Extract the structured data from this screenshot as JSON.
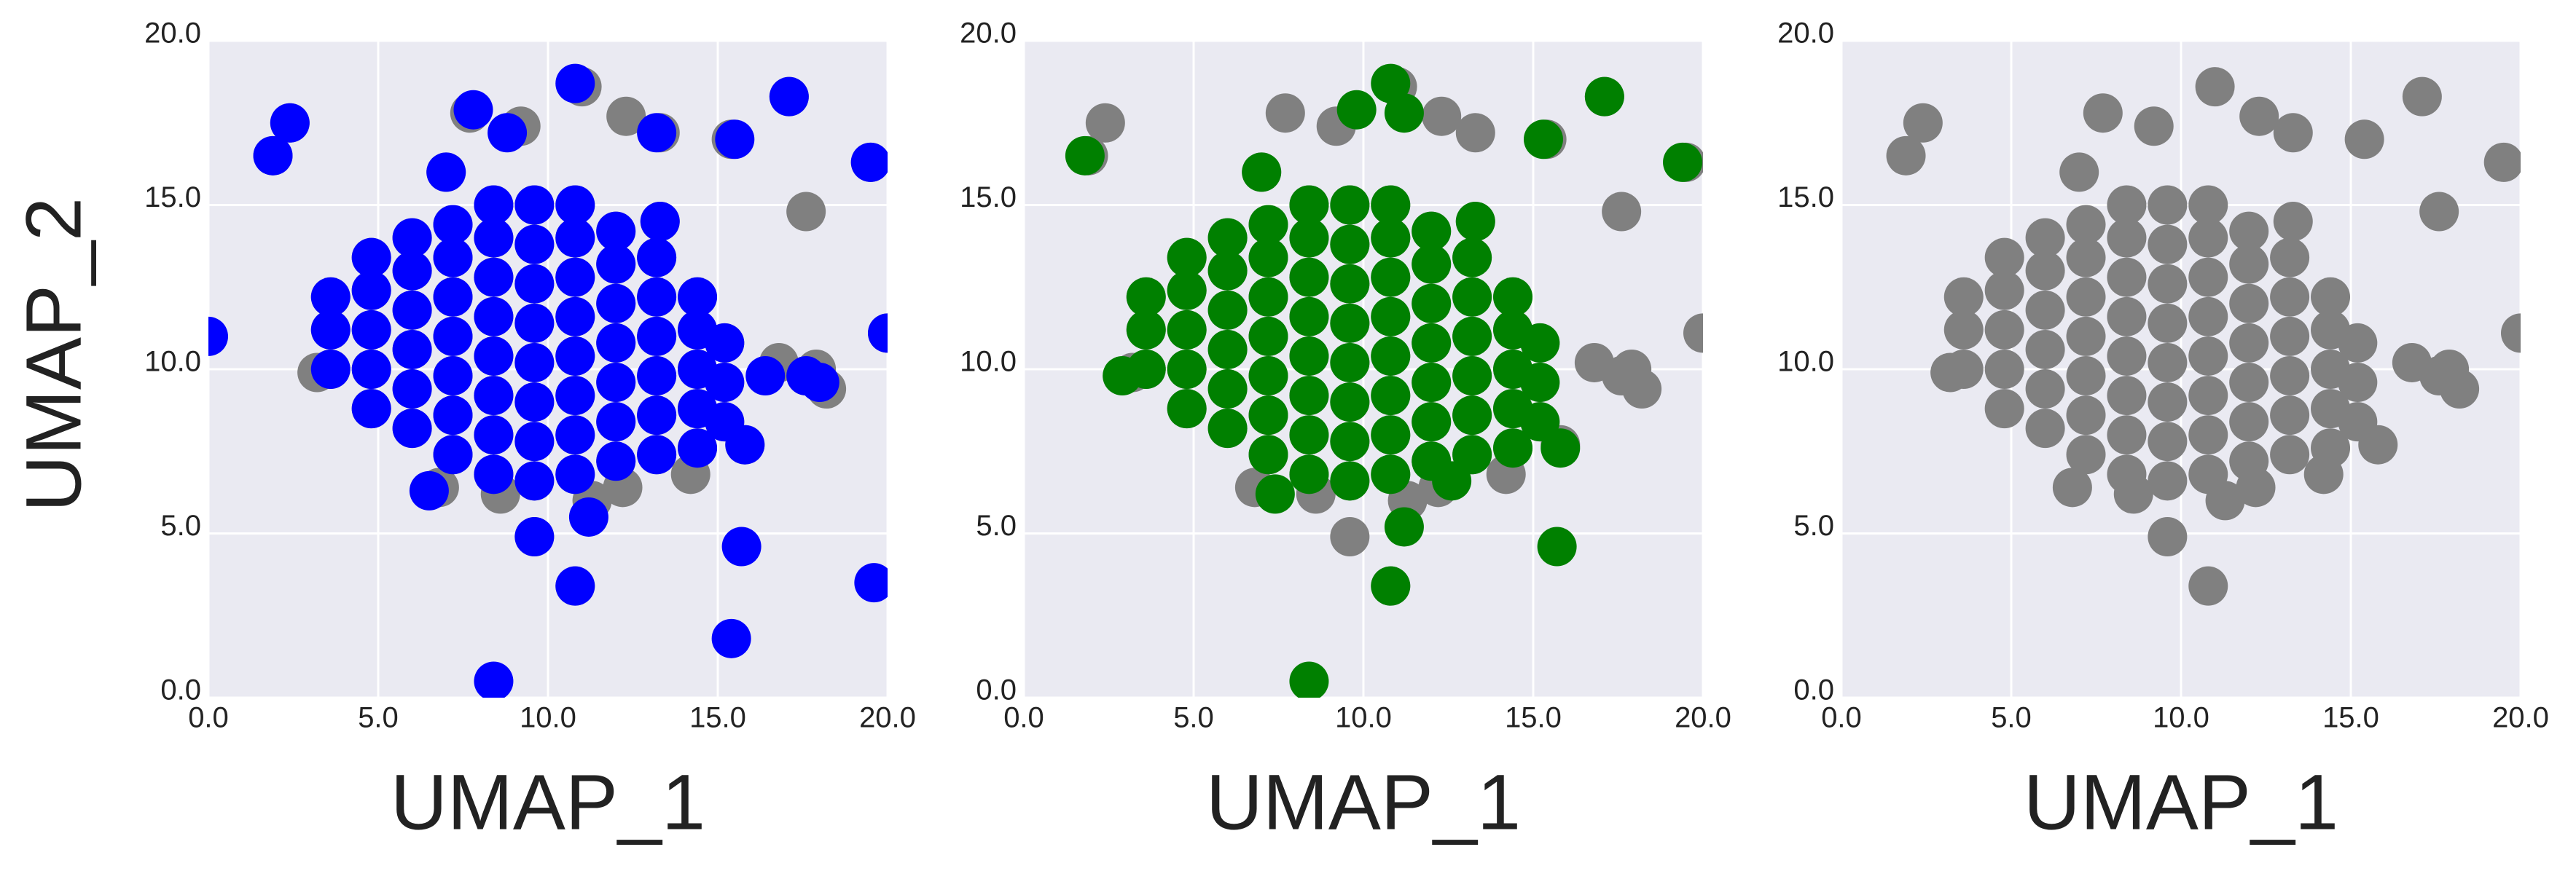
{
  "chart_data": [
    {
      "type": "scatter",
      "x_label": "UMAP_1",
      "y_label": "UMAP_2",
      "xlim": [
        0,
        20
      ],
      "ylim": [
        0,
        20
      ],
      "xticks": [
        {
          "value": 0,
          "label": "0.0"
        },
        {
          "value": 5,
          "label": "5.0"
        },
        {
          "value": 10,
          "label": "10.0"
        },
        {
          "value": 15,
          "label": "15.0"
        },
        {
          "value": 20,
          "label": "20.0"
        }
      ],
      "yticks": [
        {
          "value": 0,
          "label": "0.0"
        },
        {
          "value": 5,
          "label": "5.0"
        },
        {
          "value": 10,
          "label": "10.0"
        },
        {
          "value": 15,
          "label": "15.0"
        },
        {
          "value": 20,
          "label": "20.0"
        }
      ],
      "grid": true,
      "background": "#eaeaf2",
      "series": [
        {
          "color": "#808080",
          "x": [
            3.6,
            3.6,
            3.6,
            4.8,
            4.8,
            4.8,
            4.8,
            4.8,
            6.0,
            6.0,
            6.0,
            6.0,
            6.0,
            6.0,
            7.2,
            7.2,
            7.2,
            7.2,
            7.2,
            7.2,
            7.2,
            8.4,
            8.4,
            8.4,
            8.4,
            8.4,
            8.4,
            8.4,
            8.4,
            9.6,
            9.6,
            9.6,
            9.6,
            9.6,
            9.6,
            9.6,
            9.6,
            10.8,
            10.8,
            10.8,
            10.8,
            10.8,
            10.8,
            10.8,
            10.8,
            12.0,
            12.0,
            12.0,
            12.0,
            12.0,
            12.0,
            12.0,
            13.2,
            13.2,
            13.2,
            13.2,
            13.2,
            13.2,
            14.4,
            14.4,
            14.4,
            14.4,
            14.4,
            15.2,
            15.2,
            15.2,
            2.4,
            1.9,
            3.2,
            7.0,
            7.7,
            9.2,
            11.0,
            12.3,
            13.3,
            15.4,
            17.1,
            17.6,
            19.5,
            20.0,
            16.8,
            17.6,
            18.2,
            17.9,
            15.8,
            9.6,
            10.8,
            13.3,
            11.3,
            8.6,
            6.8,
            14.2,
            12.2
          ],
          "y": [
            10.0,
            11.2,
            12.2,
            8.8,
            10.0,
            11.2,
            12.4,
            13.4,
            8.2,
            9.4,
            10.6,
            11.8,
            13.0,
            14.0,
            7.4,
            8.6,
            9.8,
            11.0,
            12.2,
            13.4,
            14.4,
            6.8,
            8.0,
            9.2,
            10.4,
            11.6,
            12.8,
            14.0,
            15.0,
            6.6,
            7.8,
            9.0,
            10.2,
            11.4,
            12.6,
            13.8,
            15.0,
            6.8,
            8.0,
            9.2,
            10.4,
            11.6,
            12.8,
            14.0,
            15.0,
            7.2,
            8.4,
            9.6,
            10.8,
            12.0,
            13.2,
            14.2,
            7.4,
            8.6,
            9.8,
            11.0,
            12.2,
            13.4,
            7.6,
            8.8,
            10.0,
            11.2,
            12.2,
            8.4,
            9.6,
            10.8,
            17.5,
            16.5,
            9.9,
            16.0,
            17.8,
            17.4,
            18.6,
            17.7,
            17.2,
            17.0,
            18.3,
            14.8,
            16.3,
            11.1,
            10.2,
            9.8,
            9.4,
            10.0,
            7.7,
            4.9,
            3.4,
            14.5,
            6.0,
            6.2,
            6.4,
            6.8,
            6.4
          ]
        },
        {
          "color": "#0000ff",
          "x": [
            3.6,
            3.6,
            3.6,
            4.8,
            4.8,
            4.8,
            4.8,
            4.8,
            6.0,
            6.0,
            6.0,
            6.0,
            6.0,
            6.0,
            7.2,
            7.2,
            7.2,
            7.2,
            7.2,
            7.2,
            7.2,
            8.4,
            8.4,
            8.4,
            8.4,
            8.4,
            8.4,
            8.4,
            8.4,
            9.6,
            9.6,
            9.6,
            9.6,
            9.6,
            9.6,
            9.6,
            9.6,
            10.8,
            10.8,
            10.8,
            10.8,
            10.8,
            10.8,
            10.8,
            10.8,
            12.0,
            12.0,
            12.0,
            12.0,
            12.0,
            12.0,
            12.0,
            13.2,
            13.2,
            13.2,
            13.2,
            13.2,
            13.2,
            14.4,
            14.4,
            14.4,
            14.4,
            14.4,
            15.2,
            15.2,
            15.2,
            0.0,
            1.9,
            2.4,
            7.8,
            8.8,
            10.8,
            13.2,
            15.5,
            17.1,
            19.5,
            20.0,
            7.0,
            18.0,
            17.6,
            15.8,
            9.6,
            10.8,
            15.7,
            15.4,
            19.6,
            8.4,
            11.2,
            6.5,
            13.3,
            16.4
          ],
          "y": [
            10.0,
            11.2,
            12.2,
            8.8,
            10.0,
            11.2,
            12.4,
            13.4,
            8.2,
            9.4,
            10.6,
            11.8,
            13.0,
            14.0,
            7.4,
            8.6,
            9.8,
            11.0,
            12.2,
            13.4,
            14.4,
            6.8,
            8.0,
            9.2,
            10.4,
            11.6,
            12.8,
            14.0,
            15.0,
            6.6,
            7.8,
            9.0,
            10.2,
            11.4,
            12.6,
            13.8,
            15.0,
            6.8,
            8.0,
            9.2,
            10.4,
            11.6,
            12.8,
            14.0,
            15.0,
            7.2,
            8.4,
            9.6,
            10.8,
            12.0,
            13.2,
            14.2,
            7.4,
            8.6,
            9.8,
            11.0,
            12.2,
            13.4,
            7.6,
            8.8,
            10.0,
            11.2,
            12.2,
            8.4,
            9.6,
            10.8,
            11.0,
            16.5,
            17.5,
            17.9,
            17.2,
            18.7,
            17.2,
            17.0,
            18.3,
            16.3,
            11.1,
            16.0,
            9.6,
            9.8,
            7.7,
            4.9,
            3.4,
            4.6,
            1.8,
            3.5,
            0.5,
            5.5,
            6.3,
            14.5,
            9.8
          ]
        }
      ]
    },
    {
      "type": "scatter",
      "x_label": "UMAP_1",
      "xlim": [
        0,
        20
      ],
      "ylim": [
        0,
        20
      ],
      "xticks": [
        {
          "value": 0,
          "label": "0.0"
        },
        {
          "value": 5,
          "label": "5.0"
        },
        {
          "value": 10,
          "label": "10.0"
        },
        {
          "value": 15,
          "label": "15.0"
        },
        {
          "value": 20,
          "label": "20.0"
        }
      ],
      "yticks": [
        {
          "value": 0,
          "label": "0.0"
        },
        {
          "value": 5,
          "label": "5.0"
        },
        {
          "value": 10,
          "label": "10.0"
        },
        {
          "value": 15,
          "label": "15.0"
        },
        {
          "value": 20,
          "label": "20.0"
        }
      ],
      "grid": true,
      "background": "#eaeaf2",
      "series": [
        {
          "color": "#808080",
          "x": [
            3.6,
            3.6,
            3.6,
            4.8,
            4.8,
            4.8,
            4.8,
            4.8,
            6.0,
            6.0,
            6.0,
            6.0,
            6.0,
            6.0,
            7.2,
            7.2,
            7.2,
            7.2,
            7.2,
            7.2,
            7.2,
            8.4,
            8.4,
            8.4,
            8.4,
            8.4,
            8.4,
            8.4,
            8.4,
            9.6,
            9.6,
            9.6,
            9.6,
            9.6,
            9.6,
            9.6,
            9.6,
            10.8,
            10.8,
            10.8,
            10.8,
            10.8,
            10.8,
            10.8,
            10.8,
            12.0,
            12.0,
            12.0,
            12.0,
            12.0,
            12.0,
            12.0,
            13.2,
            13.2,
            13.2,
            13.2,
            13.2,
            13.2,
            14.4,
            14.4,
            14.4,
            14.4,
            14.4,
            15.2,
            15.2,
            15.2,
            2.4,
            1.9,
            3.2,
            7.0,
            7.7,
            9.2,
            11.0,
            12.3,
            13.3,
            15.4,
            17.1,
            17.6,
            19.5,
            20.0,
            16.8,
            17.6,
            18.2,
            17.9,
            15.8,
            9.6,
            10.8,
            13.3,
            11.3,
            8.6,
            6.8,
            14.2,
            12.2
          ],
          "y": [
            10.0,
            11.2,
            12.2,
            8.8,
            10.0,
            11.2,
            12.4,
            13.4,
            8.2,
            9.4,
            10.6,
            11.8,
            13.0,
            14.0,
            7.4,
            8.6,
            9.8,
            11.0,
            12.2,
            13.4,
            14.4,
            6.8,
            8.0,
            9.2,
            10.4,
            11.6,
            12.8,
            14.0,
            15.0,
            6.6,
            7.8,
            9.0,
            10.2,
            11.4,
            12.6,
            13.8,
            15.0,
            6.8,
            8.0,
            9.2,
            10.4,
            11.6,
            12.8,
            14.0,
            15.0,
            7.2,
            8.4,
            9.6,
            10.8,
            12.0,
            13.2,
            14.2,
            7.4,
            8.6,
            9.8,
            11.0,
            12.2,
            13.4,
            7.6,
            8.8,
            10.0,
            11.2,
            12.2,
            8.4,
            9.6,
            10.8,
            17.5,
            16.5,
            9.9,
            16.0,
            17.8,
            17.4,
            18.6,
            17.7,
            17.2,
            17.0,
            18.3,
            14.8,
            16.3,
            11.1,
            10.2,
            9.8,
            9.4,
            10.0,
            7.7,
            4.9,
            3.4,
            14.5,
            6.0,
            6.2,
            6.4,
            6.8,
            6.4
          ]
        },
        {
          "color": "#008000",
          "x": [
            3.6,
            3.6,
            3.6,
            4.8,
            4.8,
            4.8,
            4.8,
            4.8,
            6.0,
            6.0,
            6.0,
            6.0,
            6.0,
            6.0,
            7.2,
            7.2,
            7.2,
            7.2,
            7.2,
            7.2,
            7.2,
            8.4,
            8.4,
            8.4,
            8.4,
            8.4,
            8.4,
            8.4,
            8.4,
            9.6,
            9.6,
            9.6,
            9.6,
            9.6,
            9.6,
            9.6,
            9.6,
            10.8,
            10.8,
            10.8,
            10.8,
            10.8,
            10.8,
            10.8,
            10.8,
            12.0,
            12.0,
            12.0,
            12.0,
            12.0,
            12.0,
            12.0,
            13.2,
            13.2,
            13.2,
            13.2,
            13.2,
            13.2,
            14.4,
            14.4,
            14.4,
            14.4,
            14.4,
            15.2,
            15.2,
            15.2,
            1.8,
            2.9,
            7.0,
            9.8,
            10.8,
            11.2,
            13.3,
            15.3,
            15.8,
            17.1,
            19.4,
            10.8,
            15.7,
            8.4,
            11.2,
            7.4,
            12.6
          ],
          "y": [
            10.0,
            11.2,
            12.2,
            8.8,
            10.0,
            11.2,
            12.4,
            13.4,
            8.2,
            9.4,
            10.6,
            11.8,
            13.0,
            14.0,
            7.4,
            8.6,
            9.8,
            11.0,
            12.2,
            13.4,
            14.4,
            6.8,
            8.0,
            9.2,
            10.4,
            11.6,
            12.8,
            14.0,
            15.0,
            6.6,
            7.8,
            9.0,
            10.2,
            11.4,
            12.6,
            13.8,
            15.0,
            6.8,
            8.0,
            9.2,
            10.4,
            11.6,
            12.8,
            14.0,
            15.0,
            7.2,
            8.4,
            9.6,
            10.8,
            12.0,
            13.2,
            14.2,
            7.4,
            8.6,
            9.8,
            11.0,
            12.2,
            13.4,
            7.6,
            8.8,
            10.0,
            11.2,
            12.2,
            8.4,
            9.6,
            10.8,
            16.5,
            9.8,
            16.0,
            17.9,
            18.7,
            17.8,
            14.5,
            17.0,
            7.6,
            18.3,
            16.3,
            3.4,
            4.6,
            0.5,
            5.2,
            6.2,
            6.6
          ]
        }
      ]
    },
    {
      "type": "scatter",
      "x_label": "UMAP_1",
      "xlim": [
        0,
        20
      ],
      "ylim": [
        0,
        20
      ],
      "xticks": [
        {
          "value": 0,
          "label": "0.0"
        },
        {
          "value": 5,
          "label": "5.0"
        },
        {
          "value": 10,
          "label": "10.0"
        },
        {
          "value": 15,
          "label": "15.0"
        },
        {
          "value": 20,
          "label": "20.0"
        }
      ],
      "yticks": [
        {
          "value": 0,
          "label": "0.0"
        },
        {
          "value": 5,
          "label": "5.0"
        },
        {
          "value": 10,
          "label": "10.0"
        },
        {
          "value": 15,
          "label": "15.0"
        },
        {
          "value": 20,
          "label": "20.0"
        }
      ],
      "grid": true,
      "background": "#eaeaf2",
      "series": [
        {
          "color": "#808080",
          "x": [
            3.6,
            3.6,
            3.6,
            4.8,
            4.8,
            4.8,
            4.8,
            4.8,
            6.0,
            6.0,
            6.0,
            6.0,
            6.0,
            6.0,
            7.2,
            7.2,
            7.2,
            7.2,
            7.2,
            7.2,
            7.2,
            8.4,
            8.4,
            8.4,
            8.4,
            8.4,
            8.4,
            8.4,
            8.4,
            9.6,
            9.6,
            9.6,
            9.6,
            9.6,
            9.6,
            9.6,
            9.6,
            10.8,
            10.8,
            10.8,
            10.8,
            10.8,
            10.8,
            10.8,
            10.8,
            12.0,
            12.0,
            12.0,
            12.0,
            12.0,
            12.0,
            12.0,
            13.2,
            13.2,
            13.2,
            13.2,
            13.2,
            13.2,
            14.4,
            14.4,
            14.4,
            14.4,
            14.4,
            15.2,
            15.2,
            15.2,
            2.4,
            1.9,
            3.2,
            7.0,
            7.7,
            9.2,
            11.0,
            12.3,
            13.3,
            15.4,
            17.1,
            17.6,
            19.5,
            20.0,
            16.8,
            17.6,
            18.2,
            17.9,
            15.8,
            9.6,
            10.8,
            13.3,
            11.3,
            8.6,
            6.8,
            14.2,
            12.2
          ],
          "y": [
            10.0,
            11.2,
            12.2,
            8.8,
            10.0,
            11.2,
            12.4,
            13.4,
            8.2,
            9.4,
            10.6,
            11.8,
            13.0,
            14.0,
            7.4,
            8.6,
            9.8,
            11.0,
            12.2,
            13.4,
            14.4,
            6.8,
            8.0,
            9.2,
            10.4,
            11.6,
            12.8,
            14.0,
            15.0,
            6.6,
            7.8,
            9.0,
            10.2,
            11.4,
            12.6,
            13.8,
            15.0,
            6.8,
            8.0,
            9.2,
            10.4,
            11.6,
            12.8,
            14.0,
            15.0,
            7.2,
            8.4,
            9.6,
            10.8,
            12.0,
            13.2,
            14.2,
            7.4,
            8.6,
            9.8,
            11.0,
            12.2,
            13.4,
            7.6,
            8.8,
            10.0,
            11.2,
            12.2,
            8.4,
            9.6,
            10.8,
            17.5,
            16.5,
            9.9,
            16.0,
            17.8,
            17.4,
            18.6,
            17.7,
            17.2,
            17.0,
            18.3,
            14.8,
            16.3,
            11.1,
            10.2,
            9.8,
            9.4,
            10.0,
            7.7,
            4.9,
            3.4,
            14.5,
            6.0,
            6.2,
            6.4,
            6.8,
            6.4
          ]
        }
      ]
    }
  ]
}
